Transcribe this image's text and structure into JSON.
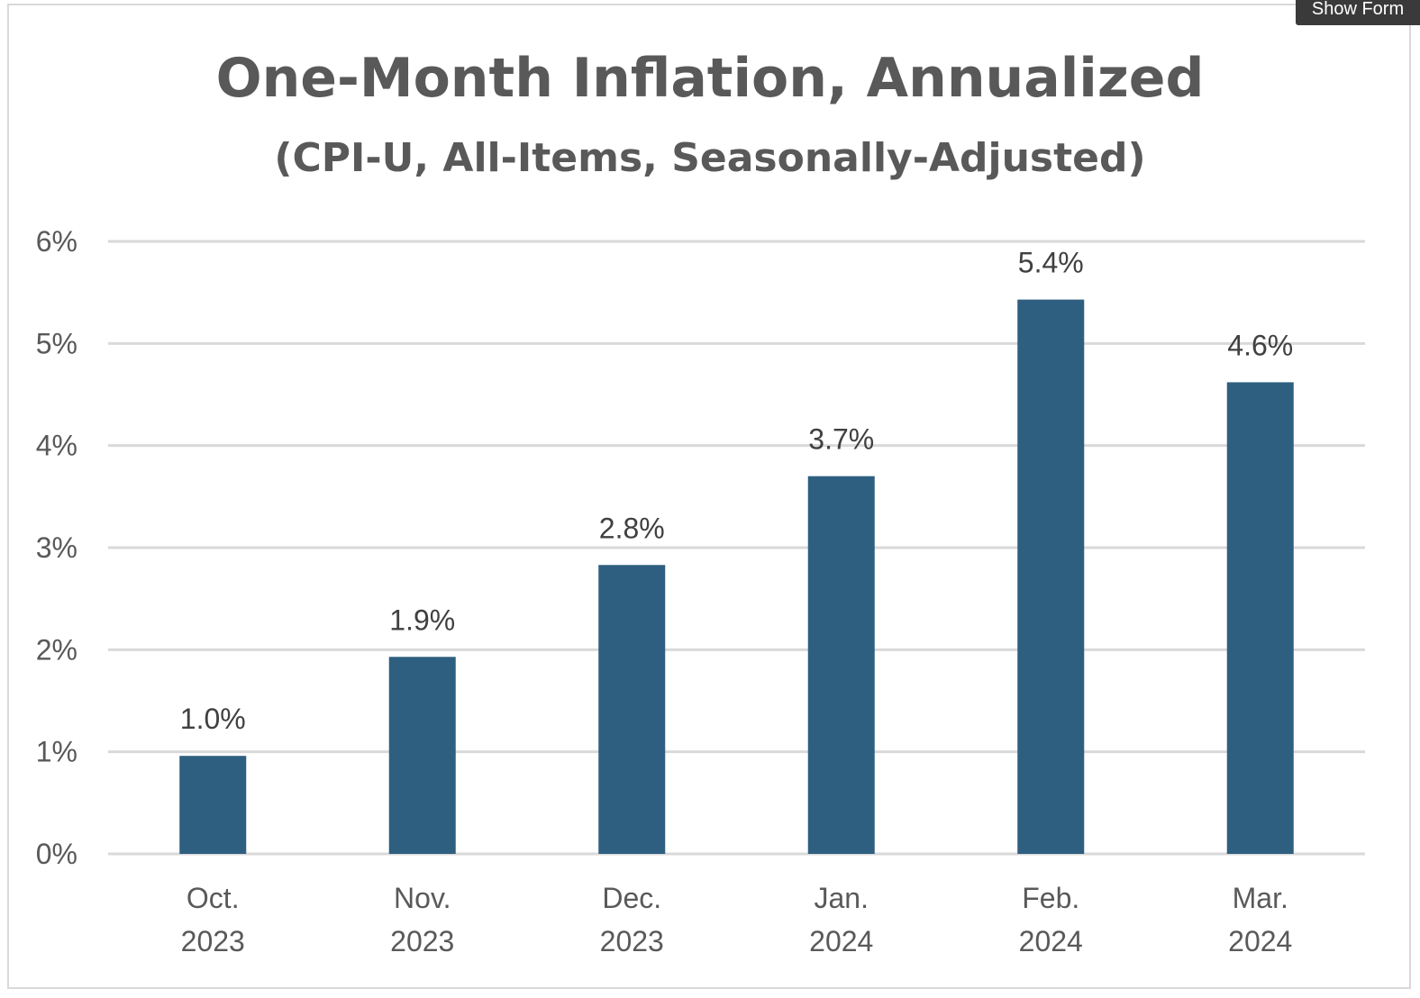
{
  "toolbar": {
    "show_form_label": "Show Form"
  },
  "chart_data": {
    "type": "bar",
    "title": "One-Month Inflation, Annualized",
    "subtitle": "(CPI-U, All-Items, Seasonally-Adjusted)",
    "categories": [
      [
        "Oct.",
        "2023"
      ],
      [
        "Nov.",
        "2023"
      ],
      [
        "Dec.",
        "2023"
      ],
      [
        "Jan.",
        "2024"
      ],
      [
        "Feb.",
        "2024"
      ],
      [
        "Mar.",
        "2024"
      ]
    ],
    "values": [
      0.96,
      1.93,
      2.83,
      3.7,
      5.43,
      4.62
    ],
    "data_labels": [
      "1.0%",
      "1.9%",
      "2.8%",
      "3.7%",
      "5.4%",
      "4.6%"
    ],
    "yticks": [
      "0%",
      "1%",
      "2%",
      "3%",
      "4%",
      "5%",
      "6%"
    ],
    "ylim": [
      0,
      6
    ],
    "grid": true,
    "legend": "none",
    "colors": {
      "bar": "#2e5f80",
      "grid": "#d9d9d9",
      "text": "#595959"
    }
  }
}
